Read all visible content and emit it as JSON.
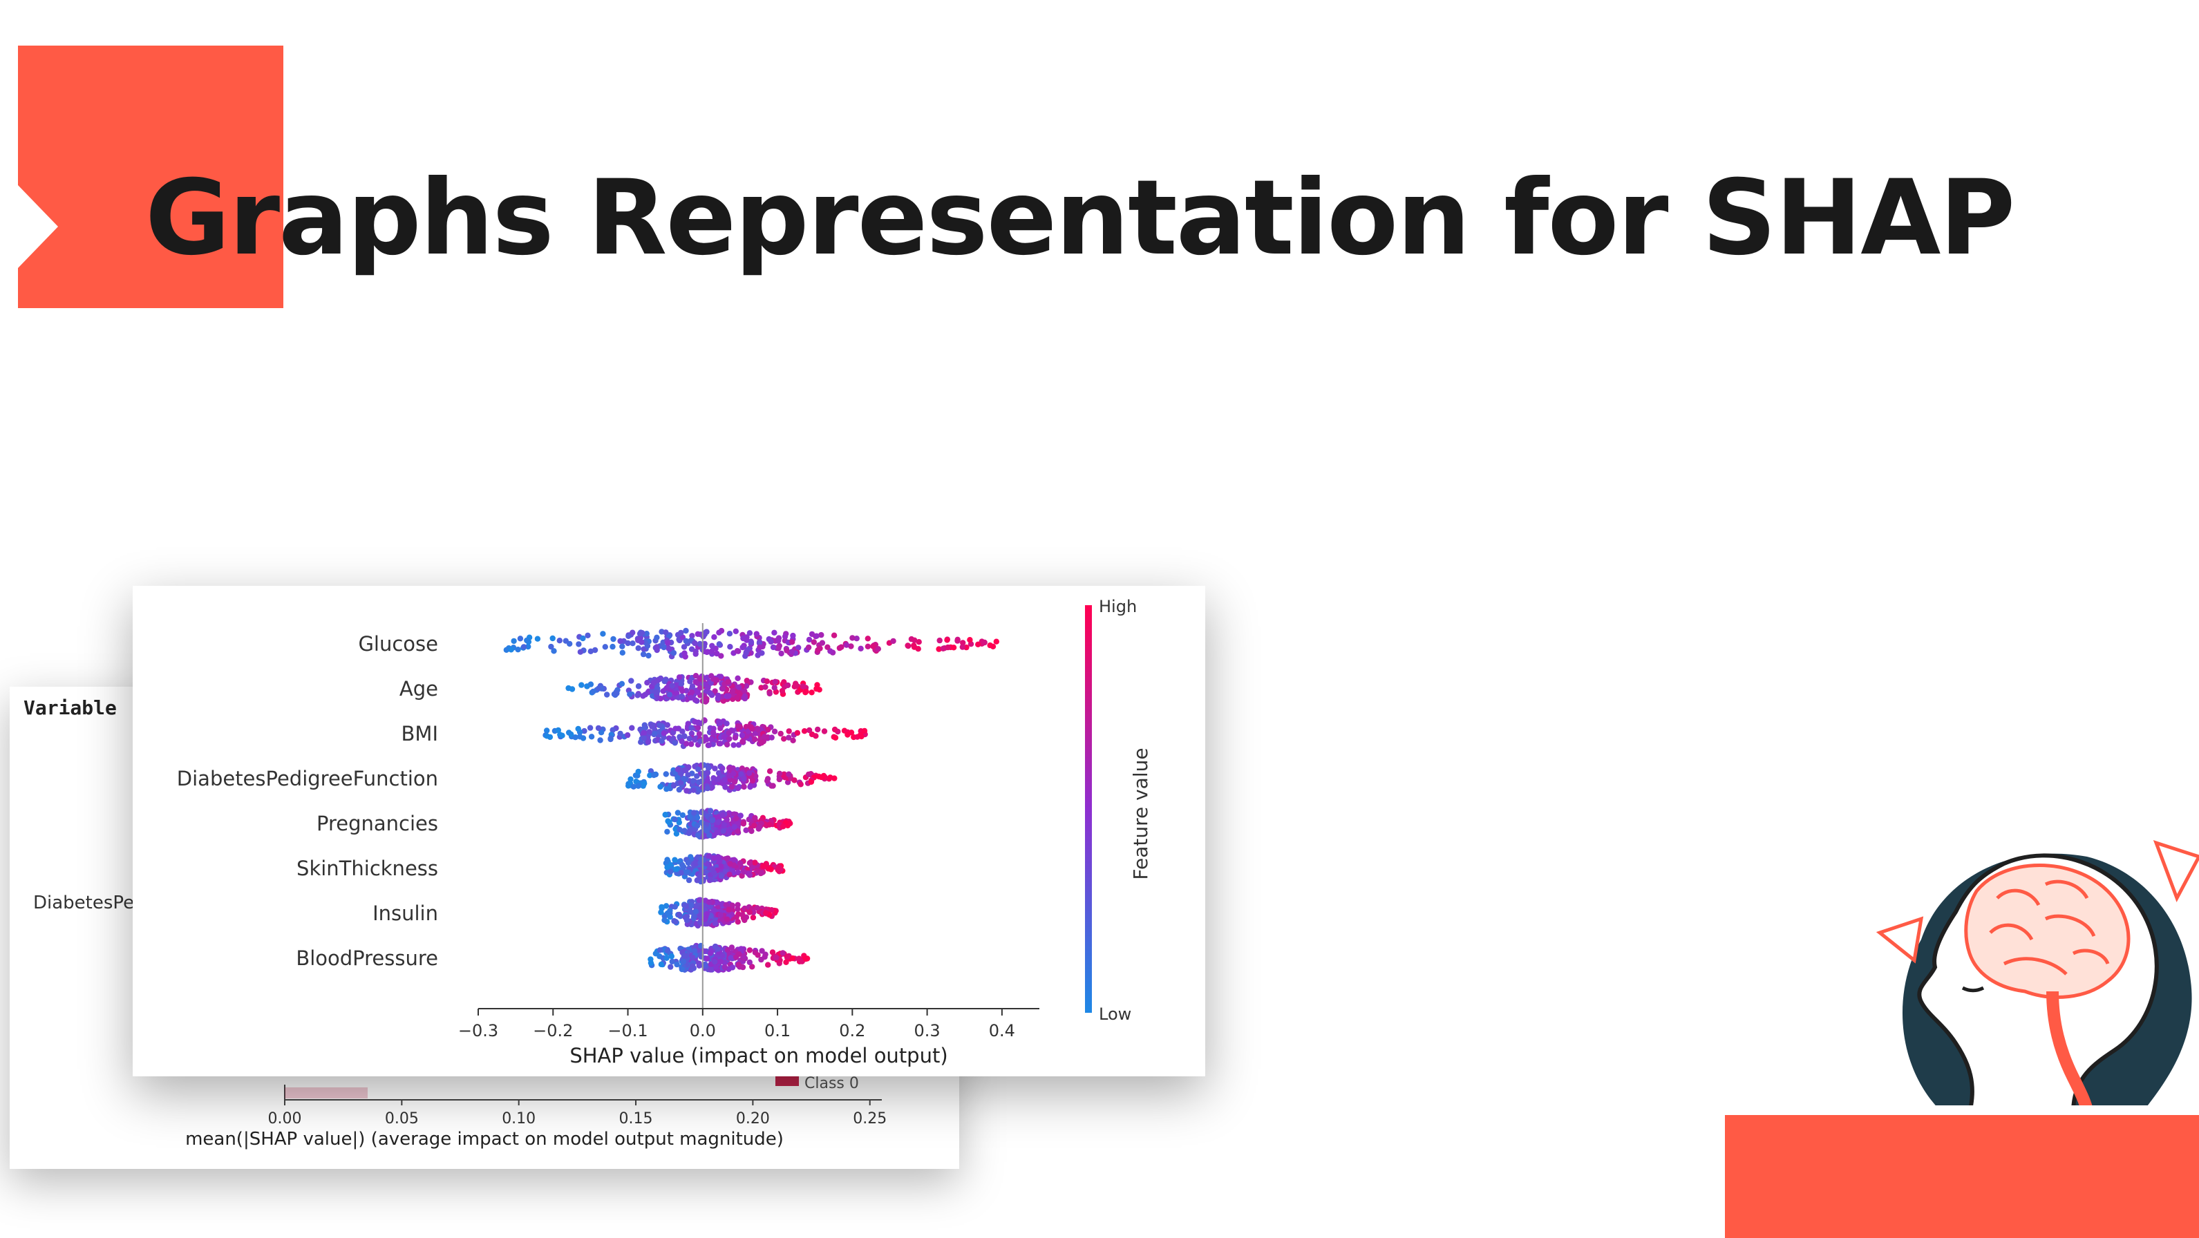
{
  "slide": {
    "title": "Graphs Representation for SHAP",
    "accent_color": "#ff5a45"
  },
  "back_chart": {
    "label": "Variable",
    "visible_row_label": "DiabetesPe",
    "legend_label": "Class 0",
    "legend_color": "#c0234a",
    "bar_color": "#c0234a",
    "x_ticks": [
      "0.00",
      "0.05",
      "0.10",
      "0.15",
      "0.20",
      "0.25"
    ],
    "x_label": "mean(|SHAP value|) (average impact on model output magnitude)"
  },
  "chart_data": {
    "type": "scatter",
    "subtype": "beeswarm",
    "features": [
      "Glucose",
      "Age",
      "BMI",
      "DiabetesPedigreeFunction",
      "Pregnancies",
      "SkinThickness",
      "Insulin",
      "BloodPressure"
    ],
    "feature_spread": [
      {
        "feature": "Glucose",
        "min": -0.27,
        "max": 0.41
      },
      {
        "feature": "Age",
        "min": -0.18,
        "max": 0.16
      },
      {
        "feature": "BMI",
        "min": -0.21,
        "max": 0.22
      },
      {
        "feature": "DiabetesPedigreeFunction",
        "min": -0.1,
        "max": 0.18
      },
      {
        "feature": "Pregnancies",
        "min": -0.05,
        "max": 0.12
      },
      {
        "feature": "SkinThickness",
        "min": -0.05,
        "max": 0.11
      },
      {
        "feature": "Insulin",
        "min": -0.06,
        "max": 0.1
      },
      {
        "feature": "BloodPressure",
        "min": -0.07,
        "max": 0.14
      }
    ],
    "x_ticks": [
      "-0.3",
      "-0.2",
      "-0.1",
      "0.0",
      "0.1",
      "0.2",
      "0.3",
      "0.4"
    ],
    "xlim": [
      -0.3,
      0.45
    ],
    "xlabel": "SHAP value (impact on model output)",
    "colorbar": {
      "label": "Feature value",
      "high": "High",
      "low": "Low",
      "low_color": "#1e88e5",
      "high_color": "#ff0052"
    },
    "grid": false,
    "legend": "right"
  }
}
